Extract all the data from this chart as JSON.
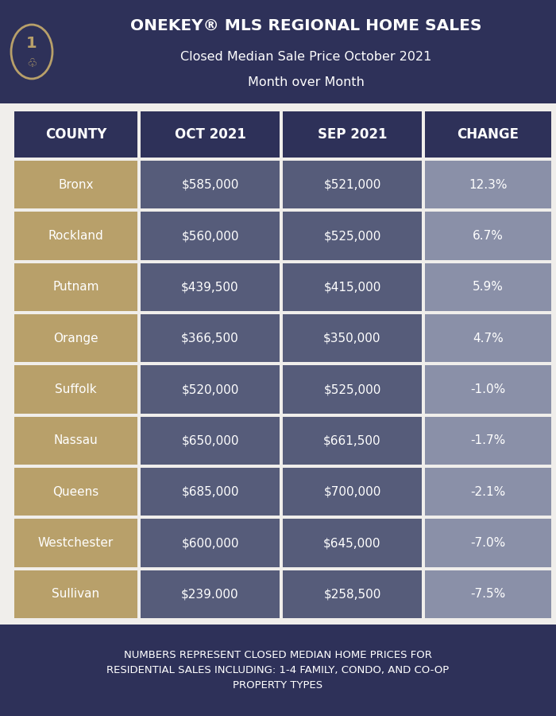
{
  "title_main": "ONEKEY® MLS REGIONAL HOME SALES",
  "title_sub1": "Closed Median Sale Price October 2021",
  "title_sub2": "Month over Month",
  "header_bg": "#2e3159",
  "bg_color": "#f0eeeb",
  "footer_bg": "#2e3159",
  "footer_text": "NUMBERS REPRESENT CLOSED MEDIAN HOME PRICES FOR\nRESIDENTIAL SALES INCLUDING: 1-4 FAMILY, CONDO, AND CO-OP\nPROPERTY TYPES",
  "col_headers": [
    "COUNTY",
    "OCT 2021",
    "SEP 2021",
    "CHANGE"
  ],
  "rows": [
    {
      "county": "Bronx",
      "oct": "$585,000",
      "sep": "$521,000",
      "change": "12.3%"
    },
    {
      "county": "Rockland",
      "oct": "$560,000",
      "sep": "$525,000",
      "change": "6.7%"
    },
    {
      "county": "Putnam",
      "oct": "$439,500",
      "sep": "$415,000",
      "change": "5.9%"
    },
    {
      "county": "Orange",
      "oct": "$366,500",
      "sep": "$350,000",
      "change": "4.7%"
    },
    {
      "county": "Suffolk",
      "oct": "$520,000",
      "sep": "$525,000",
      "change": "-1.0%"
    },
    {
      "county": "Nassau",
      "oct": "$650,000",
      "sep": "$661,500",
      "change": "-1.7%"
    },
    {
      "county": "Queens",
      "oct": "$685,000",
      "sep": "$700,000",
      "change": "-2.1%"
    },
    {
      "county": "Westchester",
      "oct": "$600,000",
      "sep": "$645,000",
      "change": "-7.0%"
    },
    {
      "county": "Sullivan",
      "oct": "$239.000",
      "sep": "$258,500",
      "change": "-7.5%"
    }
  ],
  "county_cell_color": "#b8a06a",
  "data_cell_color": "#565c7a",
  "change_cell_color": "#8a90a8",
  "cell_text_color": "#ffffff",
  "logo_oval_color": "#b8a06a"
}
